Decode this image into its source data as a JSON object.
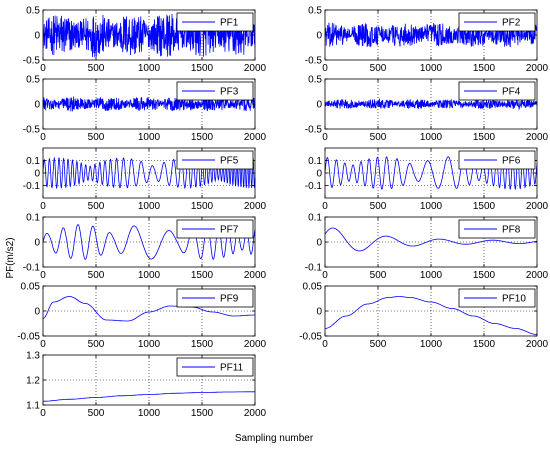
{
  "figure": {
    "ylabel": "PF(m/s2)",
    "xlabel": "Sampling number"
  },
  "chart_data": [
    {
      "type": "line",
      "series": [
        {
          "name": "PF1",
          "color": "#0000ff"
        }
      ],
      "xlim": [
        0,
        2000
      ],
      "ylim": [
        -0.5,
        0.5
      ],
      "yticks": [
        "0.5",
        "0",
        "-0.5"
      ],
      "xticks": [
        "0",
        "500",
        "1000",
        "1500",
        "2000"
      ],
      "grid": true,
      "legend": "top-right",
      "signal": {
        "kind": "noise",
        "amplitude": 0.45
      }
    },
    {
      "type": "line",
      "series": [
        {
          "name": "PF2",
          "color": "#0000ff"
        }
      ],
      "xlim": [
        0,
        2000
      ],
      "ylim": [
        -0.5,
        0.5
      ],
      "yticks": [
        "0.5",
        "0",
        "-0.5"
      ],
      "xticks": [
        "0",
        "500",
        "1000",
        "1500",
        "2000"
      ],
      "grid": true,
      "legend": "top-right",
      "signal": {
        "kind": "noise",
        "amplitude": 0.25
      }
    },
    {
      "type": "line",
      "series": [
        {
          "name": "PF3",
          "color": "#0000ff"
        }
      ],
      "xlim": [
        0,
        2000
      ],
      "ylim": [
        -0.5,
        0.5
      ],
      "yticks": [
        "0.5",
        "0",
        "-0.5"
      ],
      "xticks": [
        "0",
        "500",
        "1000",
        "1500",
        "2000"
      ],
      "grid": true,
      "legend": "top-right",
      "signal": {
        "kind": "noise",
        "amplitude": 0.15
      }
    },
    {
      "type": "line",
      "series": [
        {
          "name": "PF4",
          "color": "#0000ff"
        }
      ],
      "xlim": [
        0,
        2000
      ],
      "ylim": [
        -0.5,
        0.5
      ],
      "yticks": [
        "0.5",
        "0",
        "-0.5"
      ],
      "xticks": [
        "0",
        "500",
        "1000",
        "1500",
        "2000"
      ],
      "grid": true,
      "legend": "top-right",
      "signal": {
        "kind": "noise",
        "amplitude": 0.1
      }
    },
    {
      "type": "line",
      "series": [
        {
          "name": "PF5",
          "color": "#0000ff"
        }
      ],
      "xlim": [
        0,
        2000
      ],
      "ylim": [
        -0.2,
        0.2
      ],
      "yticks": [
        "0.1",
        "0",
        "-0.1"
      ],
      "xticks": [
        "0",
        "500",
        "1000",
        "1500",
        "2000"
      ],
      "grid": true,
      "legend": "top-right",
      "signal": {
        "kind": "wave",
        "amplitude": 0.12,
        "cycles": 40
      }
    },
    {
      "type": "line",
      "series": [
        {
          "name": "PF6",
          "color": "#0000ff"
        }
      ],
      "xlim": [
        0,
        2000
      ],
      "ylim": [
        -0.2,
        0.2
      ],
      "yticks": [
        "0.1",
        "0",
        "-0.1"
      ],
      "xticks": [
        "0",
        "500",
        "1000",
        "1500",
        "2000"
      ],
      "grid": true,
      "legend": "top-right",
      "signal": {
        "kind": "wave",
        "amplitude": 0.13,
        "cycles": 22
      }
    },
    {
      "type": "line",
      "series": [
        {
          "name": "PF7",
          "color": "#0000ff"
        }
      ],
      "xlim": [
        0,
        2000
      ],
      "ylim": [
        -0.1,
        0.1
      ],
      "yticks": [
        "0.1",
        "0",
        "-0.1"
      ],
      "xticks": [
        "0",
        "500",
        "1000",
        "1500",
        "2000"
      ],
      "grid": true,
      "legend": "top-right",
      "signal": {
        "kind": "wave",
        "amplitude": 0.07,
        "cycles": 12
      }
    },
    {
      "type": "line",
      "series": [
        {
          "name": "PF8",
          "color": "#0000ff"
        }
      ],
      "xlim": [
        0,
        2000
      ],
      "ylim": [
        -0.1,
        0.1
      ],
      "yticks": [
        "0.1",
        "0",
        "-0.1"
      ],
      "xticks": [
        "0",
        "500",
        "1000",
        "1500",
        "2000"
      ],
      "grid": true,
      "legend": "top-right",
      "signal": {
        "kind": "decay",
        "amplitude": 0.06,
        "cycles": 4
      }
    },
    {
      "type": "line",
      "series": [
        {
          "name": "PF9",
          "color": "#0000ff"
        }
      ],
      "xlim": [
        0,
        2000
      ],
      "ylim": [
        -0.05,
        0.05
      ],
      "yticks": [
        "0.05",
        "0",
        "-0.05"
      ],
      "xticks": [
        "0",
        "500",
        "1000",
        "1500",
        "2000"
      ],
      "grid": true,
      "legend": "top-right",
      "x": [
        0,
        100,
        250,
        400,
        600,
        800,
        1000,
        1200,
        1400,
        1600,
        1800,
        2000
      ],
      "y": [
        -0.015,
        0.018,
        0.029,
        0.015,
        -0.018,
        -0.02,
        -0.002,
        0.01,
        0.008,
        -0.002,
        -0.01,
        -0.008
      ]
    },
    {
      "type": "line",
      "series": [
        {
          "name": "PF10",
          "color": "#0000ff"
        }
      ],
      "xlim": [
        0,
        2000
      ],
      "ylim": [
        -0.05,
        0.05
      ],
      "yticks": [
        "0.05",
        "0",
        "-0.05"
      ],
      "xticks": [
        "0",
        "500",
        "1000",
        "1500",
        "2000"
      ],
      "grid": true,
      "legend": "top-right",
      "x": [
        0,
        200,
        400,
        600,
        700,
        800,
        1000,
        1200,
        1400,
        1600,
        1800,
        2000
      ],
      "y": [
        -0.035,
        -0.01,
        0.014,
        0.027,
        0.029,
        0.027,
        0.018,
        0.005,
        -0.01,
        -0.025,
        -0.035,
        -0.047
      ]
    },
    {
      "type": "line",
      "series": [
        {
          "name": "PF11",
          "color": "#0000ff"
        }
      ],
      "xlim": [
        0,
        2000
      ],
      "ylim": [
        1.1,
        1.3
      ],
      "yticks": [
        "1.3",
        "1.2",
        "1.1"
      ],
      "xticks": [
        "0",
        "500",
        "1000",
        "1500",
        "2000"
      ],
      "grid": true,
      "legend": "top-right",
      "x": [
        0,
        250,
        500,
        750,
        1000,
        1250,
        1500,
        1750,
        2000
      ],
      "y": [
        1.115,
        1.123,
        1.13,
        1.137,
        1.142,
        1.147,
        1.15,
        1.152,
        1.153
      ]
    }
  ]
}
